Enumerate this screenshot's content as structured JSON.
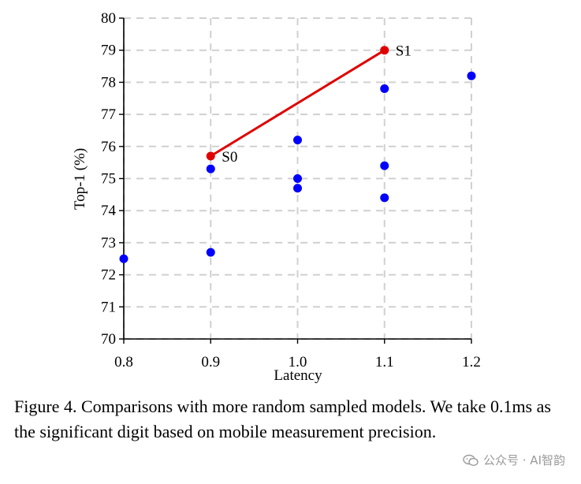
{
  "chart_data": {
    "type": "scatter",
    "xlabel": "Latency",
    "ylabel": "Top-1 (%)",
    "xlim": [
      0.8,
      1.2
    ],
    "ylim": [
      70,
      80
    ],
    "xticks": [
      "0.8",
      "0.9",
      "1.0",
      "1.1",
      "1.2"
    ],
    "yticks": [
      "70",
      "71",
      "72",
      "73",
      "74",
      "75",
      "76",
      "77",
      "78",
      "79",
      "80"
    ],
    "grid": true,
    "series": [
      {
        "color": "#0000ff",
        "points": [
          {
            "x": 0.8,
            "y": 72.5
          },
          {
            "x": 0.9,
            "y": 72.7
          },
          {
            "x": 0.9,
            "y": 75.3
          },
          {
            "x": 1.0,
            "y": 74.7
          },
          {
            "x": 1.0,
            "y": 75.0
          },
          {
            "x": 1.0,
            "y": 76.2
          },
          {
            "x": 1.1,
            "y": 74.4
          },
          {
            "x": 1.1,
            "y": 75.4
          },
          {
            "x": 1.1,
            "y": 77.8
          },
          {
            "x": 1.2,
            "y": 78.2
          }
        ]
      },
      {
        "color": "#e00000",
        "line": true,
        "points": [
          {
            "x": 0.9,
            "y": 75.7,
            "label": "S0"
          },
          {
            "x": 1.1,
            "y": 79.0,
            "label": "S1"
          }
        ]
      }
    ]
  },
  "caption": "Figure 4. Comparisons with more random sampled models. We take 0.1ms as the significant digit based on mobile measurement precision.",
  "watermark": {
    "text": "公众号 · AI智韵",
    "icon": "wechat-icon"
  }
}
